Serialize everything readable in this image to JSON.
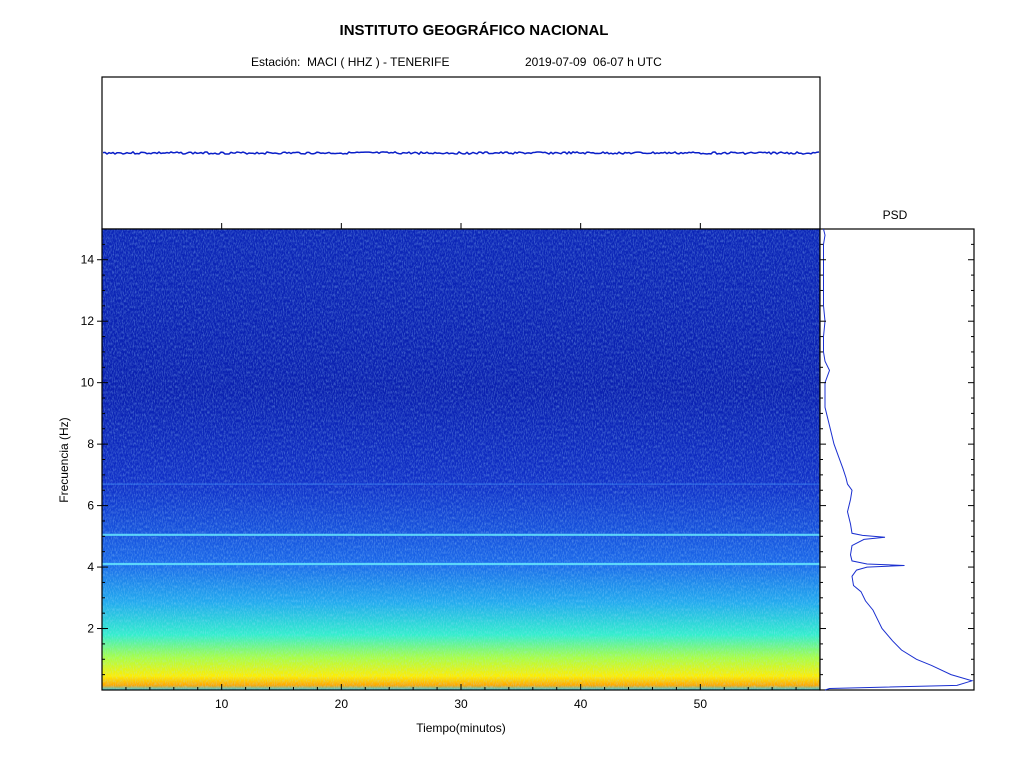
{
  "title": "INSTITUTO GEOGRÁFICO NACIONAL",
  "station": "Estación:  MACI ( HHZ ) - TENERIFE",
  "datetime": "2019-07-09  06-07 h UTC",
  "psd_label": "PSD",
  "chart_data": [
    {
      "type": "line",
      "name": "seismogram",
      "xlim": [
        0,
        60
      ],
      "trace": "flat, low-amplitude, no events"
    },
    {
      "type": "heatmap",
      "name": "spectrogram",
      "xlabel": "Tiempo(minutos)",
      "ylabel": "Frecuencia  (Hz)",
      "xlim": [
        0,
        60
      ],
      "ylim": [
        0,
        15
      ],
      "xticks": [
        10,
        20,
        30,
        40,
        50
      ],
      "yticks": [
        2,
        4,
        6,
        8,
        10,
        12,
        14
      ],
      "colormap": "jet",
      "colors": {
        "low": "#00008b",
        "mid": "#00bfff",
        "high": "#ffff00",
        "peak": "#ff4500"
      },
      "spectral_lines_hz": [
        4.1,
        5.05,
        6.7
      ],
      "high_energy_band_hz": [
        0.2,
        1.5
      ]
    },
    {
      "type": "line",
      "name": "psd",
      "freq_hz": [
        0.0,
        0.05,
        0.15,
        0.3,
        0.5,
        0.8,
        1.0,
        1.3,
        1.6,
        2.0,
        2.3,
        2.6,
        2.9,
        3.2,
        3.4,
        3.7,
        3.9,
        4.0,
        4.05,
        4.1,
        4.2,
        4.4,
        4.7,
        4.9,
        4.97,
        5.03,
        5.1,
        5.4,
        5.8,
        6.2,
        6.5,
        6.7,
        6.9,
        7.2,
        7.6,
        8.0,
        8.4,
        8.8,
        9.2,
        9.6,
        10.0,
        10.4,
        10.7,
        11.0,
        11.5,
        12.0,
        12.5,
        13.0,
        13.5,
        14.0,
        14.5,
        14.8,
        15.0
      ],
      "relative_power": [
        0.02,
        0.05,
        0.9,
        1.0,
        0.86,
        0.73,
        0.63,
        0.53,
        0.47,
        0.4,
        0.37,
        0.34,
        0.29,
        0.26,
        0.21,
        0.2,
        0.23,
        0.3,
        0.55,
        0.3,
        0.2,
        0.19,
        0.2,
        0.28,
        0.42,
        0.27,
        0.2,
        0.19,
        0.17,
        0.19,
        0.2,
        0.17,
        0.16,
        0.14,
        0.11,
        0.08,
        0.06,
        0.04,
        0.02,
        0.02,
        0.02,
        0.05,
        0.02,
        0.01,
        0.01,
        0.02,
        0.01,
        0.01,
        0.01,
        0.01,
        0.01,
        0.02,
        0.01
      ]
    }
  ]
}
